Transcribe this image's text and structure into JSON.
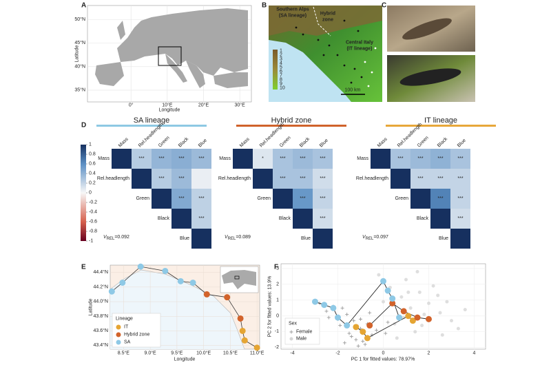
{
  "panels": {
    "A": {
      "label": "A",
      "xlabel": "Longitude",
      "ylabel": "Latitude",
      "xlim": [
        -12,
        33.2
      ],
      "ylim": [
        32.5,
        53
      ],
      "xticks": [
        {
          "value": 0,
          "label": "0°"
        },
        {
          "value": 10,
          "label": "10°E"
        },
        {
          "value": 20,
          "label": "20°E"
        },
        {
          "value": 30,
          "label": "30°E"
        }
      ],
      "yticks": [
        {
          "value": 35,
          "label": "35°N"
        },
        {
          "value": 40,
          "label": "40°N"
        },
        {
          "value": 45,
          "label": "45°N"
        },
        {
          "value": 50,
          "label": "50°N"
        }
      ]
    },
    "B": {
      "label": "B",
      "sa_title": "Southern Alps",
      "sa_sub": "(SA lineage)",
      "hz_line1": "Hybrid",
      "hz_line2": "zone",
      "it_title": "Central Italy",
      "it_sub": "(IT lineage)",
      "scale": "100 km",
      "colorbar_ticks": [
        1,
        2,
        3,
        4,
        5,
        6,
        7,
        8,
        9,
        10
      ]
    },
    "C": {
      "label": "C"
    },
    "D": {
      "label": "D",
      "variables": [
        "Mass",
        "Rel.headlength",
        "Green",
        "Black",
        "Blue"
      ],
      "colorbar_lim": [
        -1,
        1
      ],
      "colorbar_ticks": [
        1,
        0.8,
        0.6,
        0.4,
        0.2,
        0,
        -0.2,
        -0.4,
        -0.6,
        -0.8,
        -1
      ],
      "matrices": [
        {
          "title": "SA lineage",
          "color": "#8ec9e3",
          "v_symbol": "V",
          "v_sub": "REL",
          "v_text": "=0.092",
          "values": [
            [
              1,
              0.25,
              0.38,
              0.42,
              0.35
            ],
            [
              1,
              0.25,
              0.35,
              0.05
            ],
            [
              1,
              0.45,
              0.22
            ],
            [
              1,
              0.22
            ],
            [
              1
            ]
          ],
          "stars": [
            [
              null,
              "***",
              "***",
              "***",
              "***"
            ],
            [
              null,
              "***",
              "***",
              null
            ],
            [
              null,
              "***",
              "***"
            ],
            [
              null,
              "***"
            ],
            [
              null
            ]
          ]
        },
        {
          "title": "Hybrid zone",
          "color": "#d0622b",
          "v_symbol": "V",
          "v_sub": "REL",
          "v_text": "=0.089",
          "values": [
            [
              1,
              0.1,
              0.3,
              0.35,
              0.3
            ],
            [
              1,
              0.3,
              0.3,
              0.15
            ],
            [
              1,
              0.55,
              0.2
            ],
            [
              1,
              0.15
            ],
            [
              1
            ]
          ],
          "stars": [
            [
              null,
              "*",
              "***",
              "***",
              "***"
            ],
            [
              null,
              "***",
              "***",
              "***"
            ],
            [
              null,
              "***",
              "***"
            ],
            [
              null,
              "***"
            ],
            [
              null
            ]
          ]
        },
        {
          "title": "IT lineage",
          "color": "#e7a73a",
          "v_symbol": "V",
          "v_sub": "REL",
          "v_text": "=0.097",
          "values": [
            [
              1,
              0.3,
              0.35,
              0.4,
              0.3
            ],
            [
              1,
              0.2,
              0.2,
              0.2
            ],
            [
              1,
              0.65,
              0.2
            ],
            [
              1,
              0.15
            ],
            [
              1
            ]
          ],
          "stars": [
            [
              null,
              "***",
              "***",
              "***",
              "***"
            ],
            [
              null,
              "***",
              "***",
              "***"
            ],
            [
              null,
              "***",
              "***"
            ],
            [
              null,
              "***"
            ],
            [
              null
            ]
          ]
        }
      ]
    },
    "E": {
      "label": "E",
      "xlabel": "Longitude",
      "ylabel": "Latitude",
      "legend_title": "Lineage",
      "xlim": [
        8.25,
        11.05
      ],
      "ylim": [
        43.35,
        44.5
      ],
      "xticks": [
        {
          "value": 8.5,
          "label": "8.5°E"
        },
        {
          "value": 9.0,
          "label": "9.0°E"
        },
        {
          "value": 9.5,
          "label": "9.5°E"
        },
        {
          "value": 10.0,
          "label": "10.0°E"
        },
        {
          "value": 10.5,
          "label": "10.5°E"
        },
        {
          "value": 11.0,
          "label": "11.0°E"
        }
      ],
      "yticks": [
        {
          "value": 43.4,
          "label": "43.4°N"
        },
        {
          "value": 43.6,
          "label": "43.6°N"
        },
        {
          "value": 43.8,
          "label": "43.8°N"
        },
        {
          "value": 44.0,
          "label": "44.0°N"
        },
        {
          "value": 44.2,
          "label": "44.2°N"
        },
        {
          "value": 44.4,
          "label": "44.4°N"
        }
      ],
      "series": [
        {
          "name": "IT",
          "color": "#e5a533",
          "lon": [
            10.73,
            10.77,
            11.0
          ],
          "lat": [
            43.6,
            43.47,
            43.37
          ]
        },
        {
          "name": "Hybrid zone",
          "color": "#d2632b",
          "lon": [
            10.06,
            10.44,
            10.69
          ],
          "lat": [
            44.1,
            44.06,
            43.77
          ]
        },
        {
          "name": "SA",
          "color": "#8ec9e6",
          "lon": [
            8.28,
            8.48,
            8.82,
            9.28,
            9.57,
            9.8
          ],
          "lat": [
            44.14,
            44.26,
            44.48,
            44.42,
            44.28,
            44.26
          ]
        }
      ]
    },
    "F": {
      "label": "F",
      "xlabel": "PC 1 for fitted values: 78.97%",
      "ylabel": "PC 2 for fitted values: 13.9%",
      "legend_title": "Sex",
      "xlim": [
        -4.5,
        4.5
      ],
      "ylim": [
        -2.1,
        3.3
      ],
      "xticks": [
        -4,
        -2,
        0,
        2,
        4
      ],
      "yticks": [
        -2,
        -1,
        0,
        1,
        2,
        3
      ],
      "individuals": [
        {
          "name": "Female",
          "color": "#9a9a9a",
          "x": [
            -2.5,
            -2,
            -1.8,
            -1.5,
            -1.2,
            -1,
            -0.8,
            -0.5,
            -1.6,
            -2.2,
            -1.3,
            -0.9,
            -0.3,
            0.2,
            -1.1,
            -2.8,
            -1.9,
            -0.6,
            -1.4,
            -0.7,
            -2.4,
            -1.7,
            0.1,
            -1.0
          ],
          "y": [
            0.3,
            -0.2,
            0.5,
            -1.1,
            -1.5,
            -0.8,
            -1.8,
            -1.2,
            0.1,
            0.6,
            -0.3,
            -1.6,
            -0.9,
            -0.4,
            -1.9,
            0.8,
            -0.6,
            0.2,
            -1.3,
            -0.5,
            -0.1,
            -1.7,
            -1.1,
            -0.2
          ]
        },
        {
          "name": "Male",
          "color": "#d6d6d6",
          "x": [
            0.3,
            0.8,
            1.2,
            1.6,
            2,
            2.5,
            3,
            0.5,
            1,
            1.4,
            1.8,
            2.2,
            2.8,
            3.3,
            0,
            0.6,
            1.1,
            1.7,
            2.4,
            -0.2,
            0.9,
            1.5,
            2.6,
            3.6
          ],
          "y": [
            1.8,
            1.2,
            0.5,
            1.5,
            0.8,
            0.2,
            -0.3,
            -0.5,
            2.3,
            -1,
            0.1,
            1.9,
            0.9,
            -0.8,
            0.9,
            -1.4,
            1.5,
            -0.6,
            1.3,
            2.6,
            -0.1,
            2.8,
            -1.2,
            0.4
          ]
        }
      ],
      "means": [
        {
          "color": "#e5a533",
          "x": [
            -1.2,
            -0.9,
            -0.7,
            1.1,
            1.3
          ],
          "y": [
            -0.7,
            -1.0,
            -1.4,
            0.0,
            -0.3
          ]
        },
        {
          "color": "#d2632b",
          "x": [
            -0.6,
            0.4,
            0.9,
            1.5,
            2.0
          ],
          "y": [
            -0.6,
            0.8,
            0.3,
            -0.1,
            -0.2
          ]
        },
        {
          "color": "#8ec9e6",
          "x": [
            -3.0,
            -2.6,
            -2.2,
            -2.0,
            -1.6,
            0.0,
            0.2,
            0.4,
            0.7
          ],
          "y": [
            0.9,
            0.7,
            0.5,
            -0.1,
            -0.6,
            2.2,
            1.6,
            1.1,
            -0.1
          ]
        }
      ]
    }
  }
}
